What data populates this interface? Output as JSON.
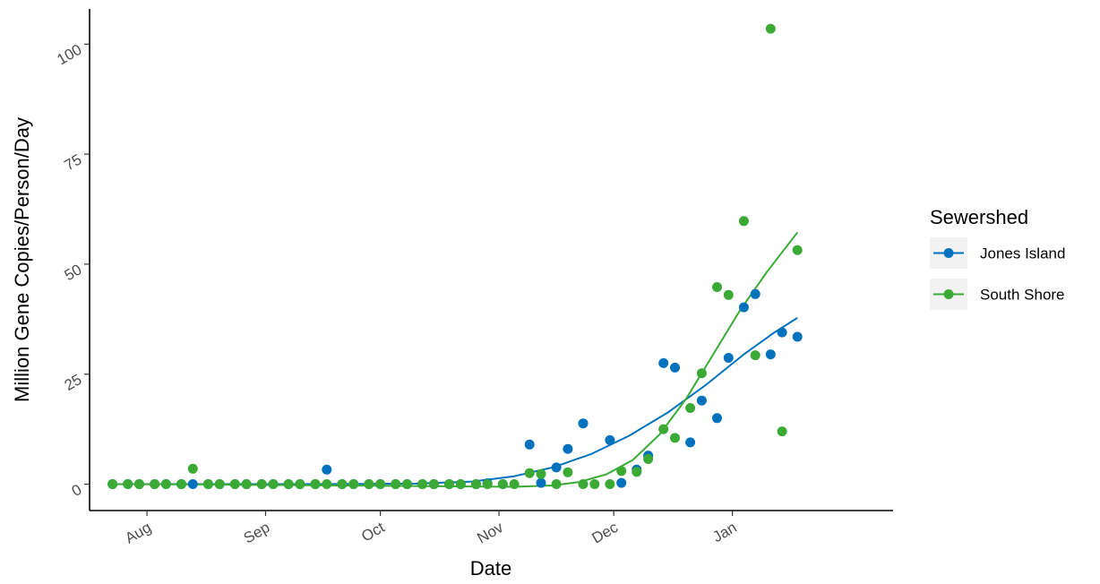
{
  "chart_data": {
    "type": "scatter",
    "title": "",
    "xlabel": "Date",
    "ylabel": "Million Gene Copies/Person/Day",
    "x_ticks": [
      {
        "date": "2020-08-01",
        "label": "Aug"
      },
      {
        "date": "2020-09-01",
        "label": "Sep"
      },
      {
        "date": "2020-10-01",
        "label": "Oct"
      },
      {
        "date": "2020-11-01",
        "label": "Nov"
      },
      {
        "date": "2020-12-01",
        "label": "Dec"
      },
      {
        "date": "2021-01-01",
        "label": "Jan"
      }
    ],
    "y_ticks": [
      0,
      25,
      50,
      75,
      100
    ],
    "xlim": [
      "2020-07-17",
      "2021-02-12"
    ],
    "ylim": [
      -6,
      108
    ],
    "grid": false,
    "legend": {
      "title": "Sewershed",
      "position": "right"
    },
    "series": [
      {
        "name": "Jones Island",
        "color": "#0072BD",
        "points": [
          {
            "x": "2020-07-23",
            "y": 0
          },
          {
            "x": "2020-07-27",
            "y": 0
          },
          {
            "x": "2020-07-30",
            "y": 0
          },
          {
            "x": "2020-08-03",
            "y": 0
          },
          {
            "x": "2020-08-06",
            "y": 0
          },
          {
            "x": "2020-08-10",
            "y": 0
          },
          {
            "x": "2020-08-13",
            "y": 0
          },
          {
            "x": "2020-08-17",
            "y": 0
          },
          {
            "x": "2020-08-20",
            "y": 0
          },
          {
            "x": "2020-08-24",
            "y": 0
          },
          {
            "x": "2020-08-27",
            "y": 0
          },
          {
            "x": "2020-08-31",
            "y": 0
          },
          {
            "x": "2020-09-03",
            "y": 0
          },
          {
            "x": "2020-09-07",
            "y": 0
          },
          {
            "x": "2020-09-10",
            "y": 0
          },
          {
            "x": "2020-09-14",
            "y": 0
          },
          {
            "x": "2020-09-17",
            "y": 3.3
          },
          {
            "x": "2020-09-21",
            "y": 0
          },
          {
            "x": "2020-09-24",
            "y": 0
          },
          {
            "x": "2020-09-28",
            "y": 0
          },
          {
            "x": "2020-10-01",
            "y": 0
          },
          {
            "x": "2020-10-05",
            "y": 0
          },
          {
            "x": "2020-10-08",
            "y": 0
          },
          {
            "x": "2020-10-12",
            "y": 0
          },
          {
            "x": "2020-10-15",
            "y": 0
          },
          {
            "x": "2020-10-19",
            "y": 0
          },
          {
            "x": "2020-10-22",
            "y": 0
          },
          {
            "x": "2020-10-26",
            "y": 0
          },
          {
            "x": "2020-10-29",
            "y": 0.2
          },
          {
            "x": "2020-11-02",
            "y": 0
          },
          {
            "x": "2020-11-09",
            "y": 9
          },
          {
            "x": "2020-11-12",
            "y": 0.3
          },
          {
            "x": "2020-11-16",
            "y": 3.8
          },
          {
            "x": "2020-11-19",
            "y": 8
          },
          {
            "x": "2020-11-23",
            "y": 13.8
          },
          {
            "x": "2020-11-30",
            "y": 10
          },
          {
            "x": "2020-12-03",
            "y": 0.3
          },
          {
            "x": "2020-12-07",
            "y": 3.3
          },
          {
            "x": "2020-12-10",
            "y": 6.5
          },
          {
            "x": "2020-12-14",
            "y": 27.5
          },
          {
            "x": "2020-12-17",
            "y": 26.5
          },
          {
            "x": "2020-12-21",
            "y": 9.5
          },
          {
            "x": "2020-12-24",
            "y": 19
          },
          {
            "x": "2020-12-28",
            "y": 15
          },
          {
            "x": "2020-12-31",
            "y": 28.7
          },
          {
            "x": "2021-01-04",
            "y": 40.2
          },
          {
            "x": "2021-01-07",
            "y": 43.2
          },
          {
            "x": "2021-01-11",
            "y": 29.5
          },
          {
            "x": "2021-01-14",
            "y": 34.5
          },
          {
            "x": "2021-01-18",
            "y": 33.5
          }
        ],
        "trend": [
          {
            "x": "2020-07-23",
            "y": 0
          },
          {
            "x": "2020-08-15",
            "y": 0
          },
          {
            "x": "2020-09-15",
            "y": 0
          },
          {
            "x": "2020-10-10",
            "y": 0.1
          },
          {
            "x": "2020-10-25",
            "y": 0.6
          },
          {
            "x": "2020-11-05",
            "y": 1.8
          },
          {
            "x": "2020-11-15",
            "y": 3.8
          },
          {
            "x": "2020-11-25",
            "y": 6.8
          },
          {
            "x": "2020-12-05",
            "y": 11
          },
          {
            "x": "2020-12-15",
            "y": 16.2
          },
          {
            "x": "2020-12-25",
            "y": 22.5
          },
          {
            "x": "2021-01-04",
            "y": 29.5
          },
          {
            "x": "2021-01-12",
            "y": 34.5
          },
          {
            "x": "2021-01-18",
            "y": 37.8
          }
        ]
      },
      {
        "name": "South Shore",
        "color": "#3AAA35",
        "points": [
          {
            "x": "2020-07-23",
            "y": 0
          },
          {
            "x": "2020-07-27",
            "y": 0
          },
          {
            "x": "2020-07-30",
            "y": 0
          },
          {
            "x": "2020-08-03",
            "y": 0
          },
          {
            "x": "2020-08-06",
            "y": 0
          },
          {
            "x": "2020-08-10",
            "y": 0
          },
          {
            "x": "2020-08-13",
            "y": 3.5
          },
          {
            "x": "2020-08-17",
            "y": 0
          },
          {
            "x": "2020-08-20",
            "y": 0
          },
          {
            "x": "2020-08-24",
            "y": 0
          },
          {
            "x": "2020-08-27",
            "y": 0
          },
          {
            "x": "2020-08-31",
            "y": 0
          },
          {
            "x": "2020-09-03",
            "y": 0
          },
          {
            "x": "2020-09-07",
            "y": 0
          },
          {
            "x": "2020-09-10",
            "y": 0
          },
          {
            "x": "2020-09-14",
            "y": 0
          },
          {
            "x": "2020-09-17",
            "y": 0
          },
          {
            "x": "2020-09-21",
            "y": 0
          },
          {
            "x": "2020-09-24",
            "y": 0
          },
          {
            "x": "2020-09-28",
            "y": 0
          },
          {
            "x": "2020-10-01",
            "y": 0
          },
          {
            "x": "2020-10-05",
            "y": 0
          },
          {
            "x": "2020-10-08",
            "y": 0
          },
          {
            "x": "2020-10-12",
            "y": 0
          },
          {
            "x": "2020-10-15",
            "y": 0
          },
          {
            "x": "2020-10-19",
            "y": 0
          },
          {
            "x": "2020-10-22",
            "y": 0
          },
          {
            "x": "2020-10-26",
            "y": 0
          },
          {
            "x": "2020-10-29",
            "y": 0
          },
          {
            "x": "2020-11-02",
            "y": 0
          },
          {
            "x": "2020-11-05",
            "y": 0
          },
          {
            "x": "2020-11-09",
            "y": 2.5
          },
          {
            "x": "2020-11-12",
            "y": 2.3
          },
          {
            "x": "2020-11-16",
            "y": 0
          },
          {
            "x": "2020-11-19",
            "y": 2.7
          },
          {
            "x": "2020-11-23",
            "y": 0
          },
          {
            "x": "2020-11-26",
            "y": 0
          },
          {
            "x": "2020-11-30",
            "y": 0
          },
          {
            "x": "2020-12-03",
            "y": 3
          },
          {
            "x": "2020-12-07",
            "y": 2.8
          },
          {
            "x": "2020-12-10",
            "y": 5.7
          },
          {
            "x": "2020-12-14",
            "y": 12.5
          },
          {
            "x": "2020-12-17",
            "y": 10.5
          },
          {
            "x": "2020-12-21",
            "y": 17.3
          },
          {
            "x": "2020-12-24",
            "y": 25.2
          },
          {
            "x": "2020-12-28",
            "y": 44.8
          },
          {
            "x": "2020-12-31",
            "y": 43
          },
          {
            "x": "2021-01-04",
            "y": 59.8
          },
          {
            "x": "2021-01-07",
            "y": 29.3
          },
          {
            "x": "2021-01-11",
            "y": 103.5
          },
          {
            "x": "2021-01-14",
            "y": 12
          },
          {
            "x": "2021-01-18",
            "y": 53.2
          }
        ],
        "trend": [
          {
            "x": "2020-07-23",
            "y": 0
          },
          {
            "x": "2020-08-20",
            "y": -0.1
          },
          {
            "x": "2020-09-20",
            "y": -0.3
          },
          {
            "x": "2020-10-20",
            "y": -0.5
          },
          {
            "x": "2020-11-05",
            "y": -0.6
          },
          {
            "x": "2020-11-15",
            "y": -0.3
          },
          {
            "x": "2020-11-22",
            "y": 0.5
          },
          {
            "x": "2020-11-29",
            "y": 2.2
          },
          {
            "x": "2020-12-06",
            "y": 5.5
          },
          {
            "x": "2020-12-13",
            "y": 11.3
          },
          {
            "x": "2020-12-20",
            "y": 19.5
          },
          {
            "x": "2020-12-27",
            "y": 29.5
          },
          {
            "x": "2021-01-03",
            "y": 39.5
          },
          {
            "x": "2021-01-10",
            "y": 48.2
          },
          {
            "x": "2021-01-18",
            "y": 57.2
          }
        ]
      }
    ]
  }
}
